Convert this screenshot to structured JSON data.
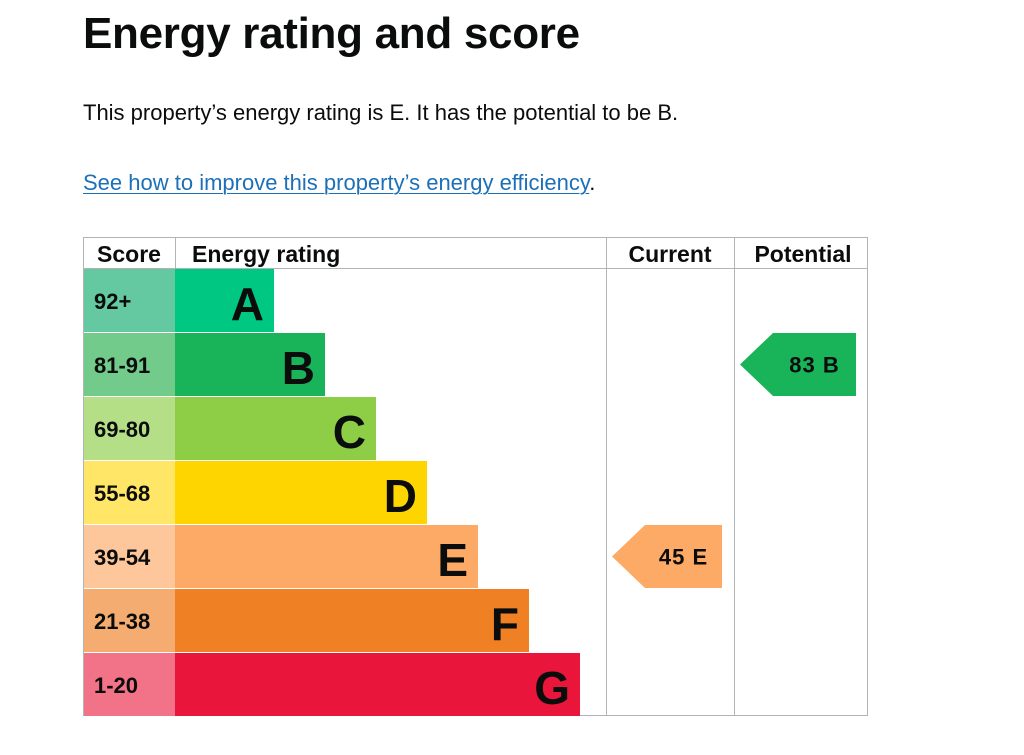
{
  "heading": "Energy rating and score",
  "intro": "This property’s energy rating is E. It has the potential to be B.",
  "link": {
    "text": "See how to improve this property’s energy efficiency",
    "suffix": "."
  },
  "chart_data": {
    "type": "bar",
    "columns": {
      "score": "Score",
      "rating": "Energy rating",
      "current": "Current",
      "potential": "Potential"
    },
    "bands": [
      {
        "letter": "A",
        "range": "92+",
        "color": "#00c781",
        "score_color": "#64c9a1"
      },
      {
        "letter": "B",
        "range": "81-91",
        "color": "#19b459",
        "score_color": "#72ca8b"
      },
      {
        "letter": "C",
        "range": "69-80",
        "color": "#8dce46",
        "score_color": "#b4df86"
      },
      {
        "letter": "D",
        "range": "55-68",
        "color": "#ffd500",
        "score_color": "#ffe666"
      },
      {
        "letter": "E",
        "range": "39-54",
        "color": "#fcaa65",
        "score_color": "#fdc79b"
      },
      {
        "letter": "F",
        "range": "21-38",
        "color": "#ef8023",
        "score_color": "#f4ac71"
      },
      {
        "letter": "G",
        "range": "1-20",
        "color": "#e9153b",
        "score_color": "#f27287"
      }
    ],
    "current": {
      "score": 45,
      "letter": "E",
      "color": "#fcaa65"
    },
    "potential": {
      "score": 83,
      "letter": "B",
      "color": "#19b459"
    }
  }
}
